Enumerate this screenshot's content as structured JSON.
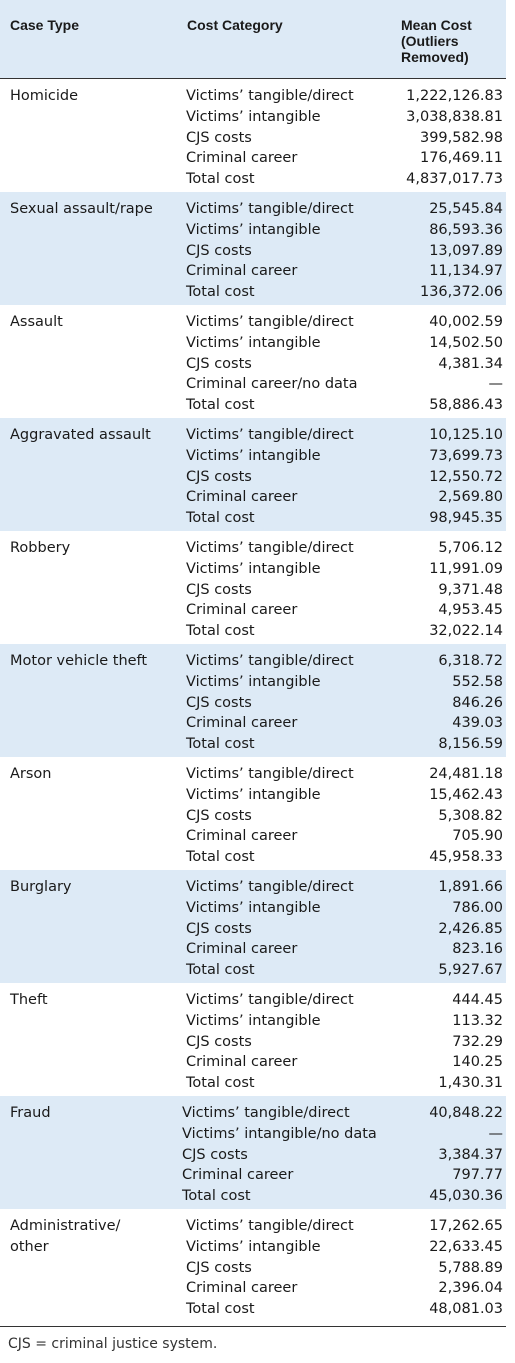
{
  "headers": {
    "case_type": "Case Type",
    "cost_category": "Cost Category",
    "mean_cost_l1": "Mean Cost",
    "mean_cost_l2": "(Outliers",
    "mean_cost_l3": "Removed)"
  },
  "rows": [
    {
      "case": [
        "Homicide"
      ],
      "cats": [
        "Victims’ tangible/direct",
        "Victims’ intangible",
        "CJS costs",
        "Criminal career",
        "Total cost"
      ],
      "vals": [
        "1,222,126.83",
        "3,038,838.81",
        "399,582.98",
        "176,469.11",
        "4,837,017.73"
      ]
    },
    {
      "case": [
        "Sexual assault/rape"
      ],
      "cats": [
        "Victims’ tangible/direct",
        "Victims’ intangible",
        "CJS costs",
        "Criminal career",
        "Total cost"
      ],
      "vals": [
        "25,545.84",
        "86,593.36",
        "13,097.89",
        "11,134.97",
        "136,372.06"
      ]
    },
    {
      "case": [
        "Assault"
      ],
      "cats": [
        "Victims’ tangible/direct",
        "Victims’ intangible",
        "CJS costs",
        "Criminal career/no data",
        "Total cost"
      ],
      "vals": [
        "40,002.59",
        "14,502.50",
        "4,381.34",
        "—",
        "58,886.43"
      ]
    },
    {
      "case": [
        "Aggravated assault"
      ],
      "cats": [
        "Victims’ tangible/direct",
        "Victims’ intangible",
        "CJS costs",
        "Criminal career",
        "Total cost"
      ],
      "vals": [
        "10,125.10",
        "73,699.73",
        "12,550.72",
        "2,569.80",
        "98,945.35"
      ]
    },
    {
      "case": [
        "Robbery"
      ],
      "cats": [
        "Victims’ tangible/direct",
        "Victims’ intangible",
        "CJS costs",
        "Criminal career",
        "Total cost"
      ],
      "vals": [
        "5,706.12",
        "11,991.09",
        "9,371.48",
        "4,953.45",
        "32,022.14"
      ]
    },
    {
      "case": [
        "Motor vehicle theft"
      ],
      "cats": [
        "Victims’ tangible/direct",
        "Victims’ intangible",
        "CJS costs",
        "Criminal career",
        "Total cost"
      ],
      "vals": [
        "6,318.72",
        "552.58",
        "846.26",
        "439.03",
        "8,156.59"
      ]
    },
    {
      "case": [
        "Arson"
      ],
      "cats": [
        "Victims’ tangible/direct",
        "Victims’ intangible",
        "CJS costs",
        "Criminal career",
        "Total cost"
      ],
      "vals": [
        "24,481.18",
        "15,462.43",
        "5,308.82",
        "705.90",
        "45,958.33"
      ]
    },
    {
      "case": [
        "Burglary"
      ],
      "cats": [
        "Victims’ tangible/direct",
        "Victims’ intangible",
        "CJS costs",
        "Criminal career",
        "Total cost"
      ],
      "vals": [
        "1,891.66",
        "786.00",
        "2,426.85",
        "823.16",
        "5,927.67"
      ]
    },
    {
      "case": [
        "Theft"
      ],
      "cats": [
        "Victims’ tangible/direct",
        "Victims’ intangible",
        "CJS costs",
        "Criminal career",
        "Total cost"
      ],
      "vals": [
        "444.45",
        "113.32",
        "732.29",
        "140.25",
        "1,430.31"
      ]
    },
    {
      "case": [
        "Fraud"
      ],
      "cats": [
        "Victims’ tangible/direct",
        "Victims’ intangible/no data",
        "CJS costs",
        "Criminal career",
        "Total cost"
      ],
      "vals": [
        "40,848.22",
        "—",
        "3,384.37",
        "797.77",
        "45,030.36"
      ]
    },
    {
      "case": [
        "Administrative/",
        "other"
      ],
      "cats": [
        "Victims’ tangible/direct",
        "Victims’ intangible",
        "CJS costs",
        "Criminal career",
        "Total cost"
      ],
      "vals": [
        "17,262.65",
        "22,633.45",
        "5,788.89",
        "2,396.04",
        "48,081.03"
      ]
    }
  ],
  "footnote": "CJS = criminal justice system."
}
